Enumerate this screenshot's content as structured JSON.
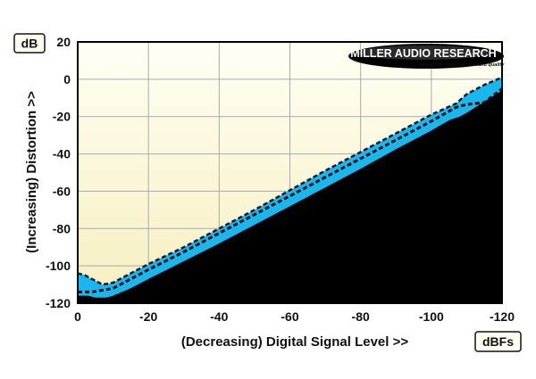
{
  "chart_data": {
    "type": "area",
    "title": "",
    "xlabel": "(Decreasing) Digital Signal Level >>",
    "ylabel": "(Increasing) Distortion >>",
    "x_unit": "dBFs",
    "y_unit": "dB",
    "xlim": [
      0,
      -120
    ],
    "ylim": [
      -120,
      20
    ],
    "x_ticks": [
      "0",
      "-20",
      "-40",
      "-60",
      "-80",
      "-100",
      "-120"
    ],
    "y_ticks": [
      "20",
      "0",
      "-20",
      "-40",
      "-60",
      "-80",
      "-100",
      "-120"
    ],
    "grid": true,
    "colors": {
      "band": "#1ab7ee",
      "floor": "#000000",
      "background_top": "#fffff4",
      "background_bottom": "#f6efbf",
      "grid": "#aaaaaa"
    },
    "series": [
      {
        "x": [
          0,
          -2,
          -4,
          -7,
          -10,
          -15,
          -20,
          -30,
          -40,
          -50,
          -60,
          -70,
          -80,
          -90,
          -100,
          -107,
          -110,
          -115,
          -120
        ],
        "values": [
          -104,
          -105,
          -107,
          -110,
          -109,
          -104,
          -99,
          -90,
          -80,
          -70,
          -59.5,
          -49,
          -39,
          -29,
          -19,
          -13,
          -8,
          -3,
          1
        ]
      },
      {
        "x": [
          0,
          -4,
          -7,
          -10,
          -15,
          -20,
          -30,
          -40,
          -50,
          -60,
          -70,
          -80,
          -90,
          -100,
          -107,
          -110,
          -115,
          -118,
          -120
        ],
        "values": [
          -114,
          -114,
          -113,
          -112,
          -107,
          -102,
          -92.5,
          -82.5,
          -72.5,
          -62.5,
          -52.5,
          -42.5,
          -32.5,
          -22.5,
          -15,
          -13.5,
          -12.5,
          -8,
          -5
        ]
      },
      {
        "x": [
          0,
          -3,
          -5,
          -8,
          -10,
          -15,
          -20,
          -30,
          -40,
          -50,
          -60,
          -70,
          -80,
          -90,
          -100,
          -105,
          -108,
          -110,
          -115,
          -120
        ],
        "values": [
          -116,
          -116,
          -117,
          -117,
          -116,
          -112,
          -107,
          -97.5,
          -88,
          -78,
          -68,
          -58,
          -48,
          -37.5,
          -27.5,
          -22,
          -20,
          -18,
          -12,
          -6
        ]
      }
    ]
  },
  "header": {
    "y_unit_label": "dB",
    "x_unit_label": "dBFs"
  },
  "axes": {
    "x_title": "(Decreasing) Digital Signal Level >>",
    "y_title": "(Increasing) Distortion >>"
  },
  "logo": {
    "name": "MILLER AUDIO RESEARCH",
    "tagline": "Setting the measure of sound quality"
  }
}
